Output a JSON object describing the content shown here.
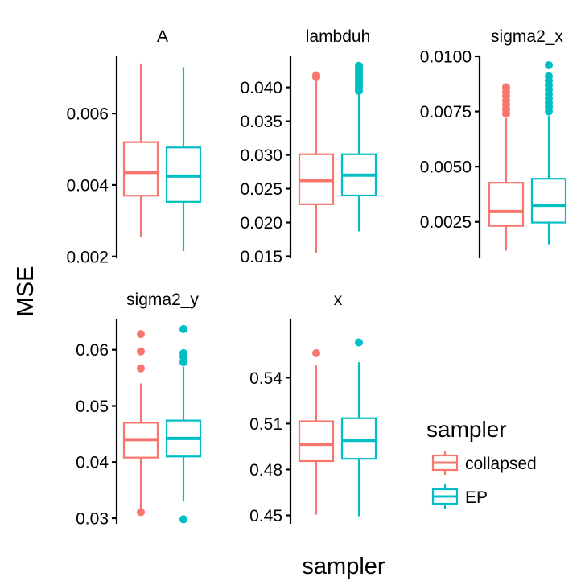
{
  "chart_data": {
    "type": "boxplot",
    "xlabel": "sampler",
    "ylabel": "MSE",
    "legend": {
      "title": "sampler",
      "position": "bottom-right",
      "entries": [
        {
          "name": "collapsed",
          "color": "#F8766D"
        },
        {
          "name": "EP",
          "color": "#00BFC4"
        }
      ]
    },
    "facets": [
      {
        "title": "A",
        "ylim": [
          0.00195,
          0.0076
        ],
        "ticks": [
          0.002,
          0.004,
          0.006
        ],
        "tick_labels": [
          "0.002",
          "0.004",
          "0.006"
        ],
        "boxes": [
          {
            "name": "collapsed",
            "whisker_low": 0.00255,
            "q1": 0.0037,
            "median": 0.00435,
            "q3": 0.0052,
            "whisker_high": 0.0074,
            "outliers": []
          },
          {
            "name": "EP",
            "whisker_low": 0.00215,
            "q1": 0.00353,
            "median": 0.00425,
            "q3": 0.00505,
            "whisker_high": 0.0073,
            "outliers": []
          }
        ]
      },
      {
        "title": "lambduh",
        "ylim": [
          0.0147,
          0.0446
        ],
        "ticks": [
          0.015,
          0.02,
          0.025,
          0.03,
          0.035,
          0.04
        ],
        "tick_labels": [
          "0.015",
          "0.020",
          "0.025",
          "0.030",
          "0.035",
          "0.040"
        ],
        "boxes": [
          {
            "name": "collapsed",
            "whisker_low": 0.0155,
            "q1": 0.0227,
            "median": 0.0262,
            "q3": 0.0301,
            "whisker_high": 0.0412,
            "outliers": [
              0.0415,
              0.0418
            ]
          },
          {
            "name": "EP",
            "whisker_low": 0.0187,
            "q1": 0.024,
            "median": 0.027,
            "q3": 0.0301,
            "whisker_high": 0.039,
            "outliers": [
              0.0395,
              0.04,
              0.0404,
              0.0408,
              0.0412,
              0.0416,
              0.042,
              0.0424,
              0.0428,
              0.0432
            ]
          }
        ]
      },
      {
        "title": "sigma2_x",
        "ylim": [
          0.00085,
          0.01
        ],
        "ticks": [
          0.0025,
          0.005,
          0.0075,
          0.01
        ],
        "tick_labels": [
          "0.0025",
          "0.0050",
          "0.0075",
          "0.0100"
        ],
        "boxes": [
          {
            "name": "collapsed",
            "whisker_low": 0.0012,
            "q1": 0.00232,
            "median": 0.00297,
            "q3": 0.00427,
            "whisker_high": 0.0072,
            "outliers": [
              0.0074,
              0.0076,
              0.0078,
              0.008,
              0.0082,
              0.0084,
              0.0086
            ]
          },
          {
            "name": "EP",
            "whisker_low": 0.00148,
            "q1": 0.00247,
            "median": 0.00325,
            "q3": 0.00445,
            "whisker_high": 0.0073,
            "outliers": [
              0.0075,
              0.0077,
              0.0079,
              0.0081,
              0.0083,
              0.0085,
              0.0087,
              0.0089,
              0.0091,
              0.0096
            ]
          }
        ]
      },
      {
        "title": "sigma2_y",
        "ylim": [
          0.029,
          0.0654
        ],
        "ticks": [
          0.03,
          0.04,
          0.05,
          0.06
        ],
        "tick_labels": [
          "0.03",
          "0.04",
          "0.05",
          "0.06"
        ],
        "boxes": [
          {
            "name": "collapsed",
            "whisker_low": 0.0311,
            "q1": 0.0408,
            "median": 0.044,
            "q3": 0.047,
            "whisker_high": 0.054,
            "outliers": [
              0.0311,
              0.0567,
              0.0597,
              0.0628
            ]
          },
          {
            "name": "EP",
            "whisker_low": 0.033,
            "q1": 0.041,
            "median": 0.0442,
            "q3": 0.0474,
            "whisker_high": 0.057,
            "outliers": [
              0.0298,
              0.0578,
              0.0587,
              0.0594,
              0.0637
            ]
          }
        ]
      },
      {
        "title": "x",
        "ylim": [
          0.4445,
          0.578
        ],
        "ticks": [
          0.45,
          0.48,
          0.51,
          0.54
        ],
        "tick_labels": [
          "0.45",
          "0.48",
          "0.51",
          "0.54"
        ],
        "boxes": [
          {
            "name": "collapsed",
            "whisker_low": 0.4505,
            "q1": 0.4855,
            "median": 0.4965,
            "q3": 0.5115,
            "whisker_high": 0.548,
            "outliers": [
              0.556
            ]
          },
          {
            "name": "EP",
            "whisker_low": 0.4495,
            "q1": 0.487,
            "median": 0.499,
            "q3": 0.5135,
            "whisker_high": 0.55,
            "outliers": [
              0.563
            ]
          }
        ]
      }
    ]
  }
}
